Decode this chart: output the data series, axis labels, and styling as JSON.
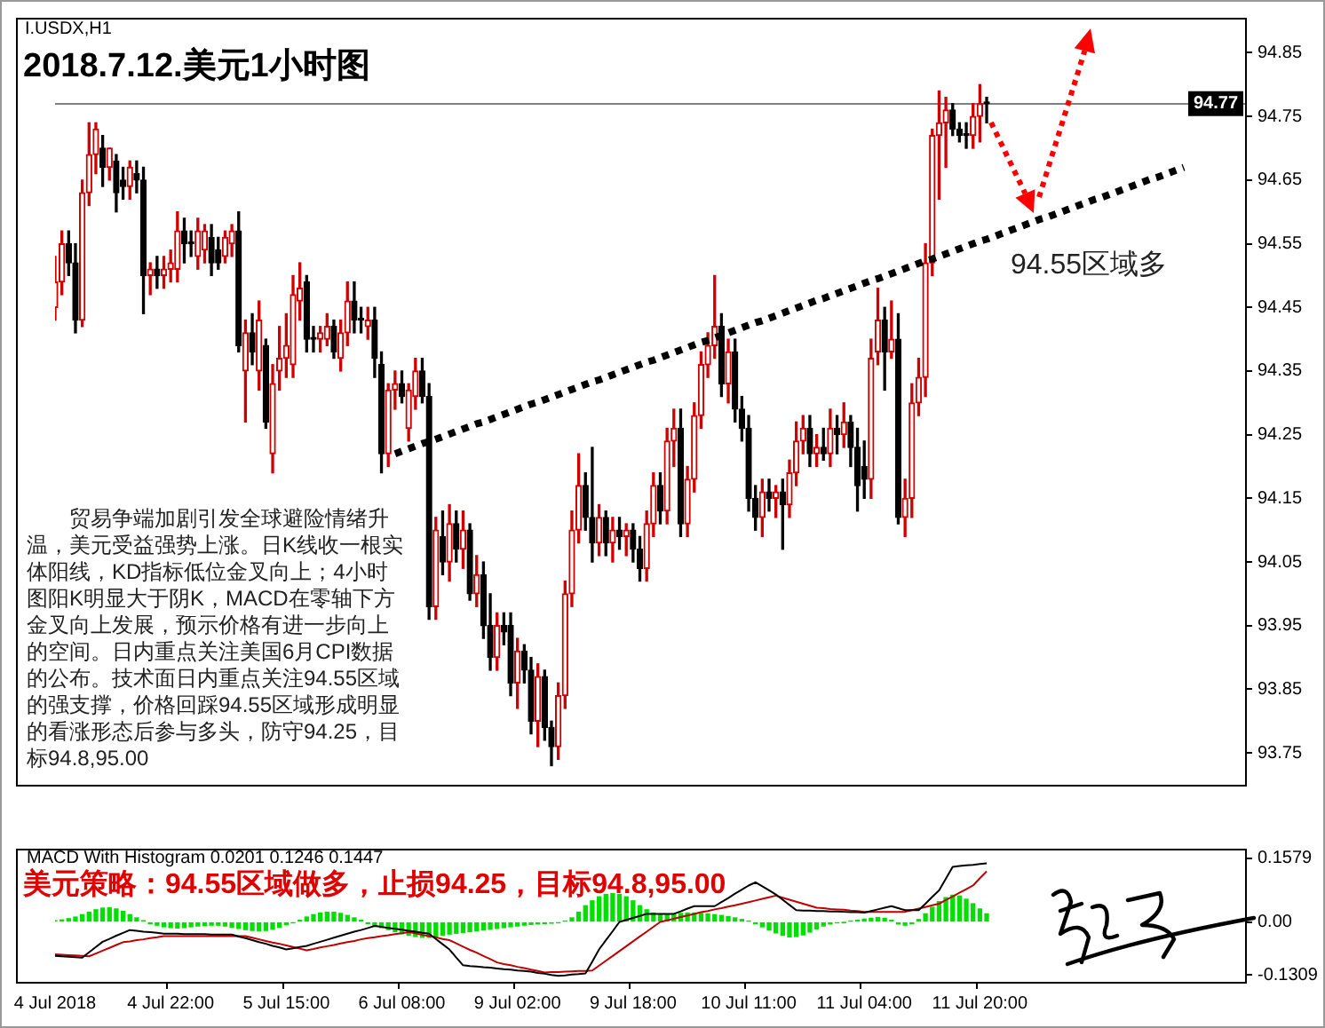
{
  "chart_data": [
    {
      "type": "candlestick",
      "subtitle": "I.USDX,H1",
      "title": "2018.7.12.美元1小时图",
      "ohlc": [
        [
          94.45,
          94.53,
          94.43,
          94.49
        ],
        [
          94.49,
          94.57,
          94.47,
          94.55
        ],
        [
          94.55,
          94.57,
          94.5,
          94.52
        ],
        [
          94.52,
          94.55,
          94.41,
          94.43
        ],
        [
          94.43,
          94.65,
          94.42,
          94.63
        ],
        [
          94.63,
          94.74,
          94.61,
          94.69
        ],
        [
          94.69,
          94.74,
          94.66,
          94.73
        ],
        [
          94.7,
          94.72,
          94.64,
          94.67
        ],
        [
          94.67,
          94.7,
          94.65,
          94.7
        ],
        [
          94.68,
          94.69,
          94.6,
          94.63
        ],
        [
          94.65,
          94.67,
          94.62,
          94.64
        ],
        [
          94.64,
          94.68,
          94.62,
          94.67
        ],
        [
          94.66,
          94.68,
          94.63,
          94.65
        ],
        [
          94.65,
          94.67,
          94.44,
          94.5
        ],
        [
          94.5,
          94.52,
          94.47,
          94.51
        ],
        [
          94.51,
          94.53,
          94.48,
          94.5
        ],
        [
          94.5,
          94.53,
          94.48,
          94.51
        ],
        [
          94.51,
          94.54,
          94.49,
          94.52
        ],
        [
          94.51,
          94.6,
          94.49,
          94.57
        ],
        [
          94.57,
          94.59,
          94.52,
          94.55
        ],
        [
          94.55,
          94.57,
          94.53,
          94.55
        ],
        [
          94.53,
          94.59,
          94.51,
          94.57
        ],
        [
          94.54,
          94.58,
          94.52,
          94.57
        ],
        [
          94.56,
          94.58,
          94.5,
          94.52
        ],
        [
          94.54,
          94.56,
          94.51,
          94.52
        ],
        [
          94.53,
          94.57,
          94.52,
          94.56
        ],
        [
          94.55,
          94.58,
          94.53,
          94.57
        ],
        [
          94.57,
          94.6,
          94.38,
          94.39
        ],
        [
          94.35,
          94.43,
          94.27,
          94.41
        ],
        [
          94.41,
          94.44,
          94.36,
          94.38
        ],
        [
          94.35,
          94.46,
          94.32,
          94.43
        ],
        [
          94.39,
          94.4,
          94.26,
          94.27
        ],
        [
          94.22,
          94.36,
          94.19,
          94.33
        ],
        [
          94.35,
          94.42,
          94.32,
          94.37
        ],
        [
          94.37,
          94.44,
          94.34,
          94.39
        ],
        [
          94.36,
          94.5,
          94.34,
          94.47
        ],
        [
          94.46,
          94.52,
          94.43,
          94.48
        ],
        [
          94.49,
          94.5,
          94.38,
          94.4
        ],
        [
          94.4,
          94.42,
          94.38,
          94.4
        ],
        [
          94.4,
          94.42,
          94.38,
          94.41
        ],
        [
          94.4,
          94.44,
          94.39,
          94.42
        ],
        [
          94.42,
          94.43,
          94.37,
          94.38
        ],
        [
          94.37,
          94.43,
          94.35,
          94.41
        ],
        [
          94.41,
          94.49,
          94.39,
          94.46
        ],
        [
          94.46,
          94.49,
          94.41,
          94.43
        ],
        [
          94.43,
          94.45,
          94.41,
          94.43
        ],
        [
          94.42,
          94.45,
          94.4,
          94.43
        ],
        [
          94.43,
          94.45,
          94.34,
          94.37
        ],
        [
          94.36,
          94.38,
          94.19,
          94.22
        ],
        [
          94.22,
          94.33,
          94.2,
          94.32
        ],
        [
          94.32,
          94.35,
          94.29,
          94.33
        ],
        [
          94.33,
          94.35,
          94.3,
          94.31
        ],
        [
          94.26,
          94.33,
          94.24,
          94.32
        ],
        [
          94.31,
          94.37,
          94.29,
          94.35
        ],
        [
          94.35,
          94.37,
          94.3,
          94.31
        ],
        [
          94.31,
          94.33,
          93.96,
          93.98
        ],
        [
          93.98,
          94.12,
          93.96,
          94.1
        ],
        [
          94.09,
          94.13,
          94.03,
          94.05
        ],
        [
          94.05,
          94.14,
          94.02,
          94.11
        ],
        [
          94.11,
          94.13,
          94.05,
          94.07
        ],
        [
          94.07,
          94.13,
          94.04,
          94.1
        ],
        [
          94.1,
          94.11,
          93.99,
          94.0
        ],
        [
          94.0,
          94.06,
          93.98,
          94.03
        ],
        [
          94.03,
          94.05,
          93.93,
          93.95
        ],
        [
          93.95,
          94.0,
          93.88,
          93.9
        ],
        [
          93.9,
          93.97,
          93.88,
          93.95
        ],
        [
          93.95,
          93.97,
          93.92,
          93.94
        ],
        [
          93.95,
          93.97,
          93.84,
          93.86
        ],
        [
          93.86,
          93.93,
          93.82,
          93.91
        ],
        [
          93.91,
          93.92,
          93.86,
          93.88
        ],
        [
          93.88,
          93.9,
          93.78,
          93.8
        ],
        [
          93.8,
          93.89,
          93.76,
          93.87
        ],
        [
          93.87,
          93.88,
          93.77,
          93.79
        ],
        [
          93.79,
          93.8,
          93.73,
          93.76
        ],
        [
          93.76,
          93.86,
          93.74,
          93.84
        ],
        [
          93.84,
          94.02,
          93.82,
          94.0
        ],
        [
          94.0,
          94.13,
          93.98,
          94.1
        ],
        [
          94.1,
          94.22,
          94.08,
          94.17
        ],
        [
          94.17,
          94.19,
          94.1,
          94.12
        ],
        [
          94.12,
          94.23,
          94.05,
          94.08
        ],
        [
          94.08,
          94.14,
          94.06,
          94.12
        ],
        [
          94.12,
          94.13,
          94.06,
          94.08
        ],
        [
          94.08,
          94.12,
          94.05,
          94.1
        ],
        [
          94.1,
          94.12,
          94.07,
          94.09
        ],
        [
          94.09,
          94.11,
          94.06,
          94.1
        ],
        [
          94.1,
          94.11,
          94.05,
          94.07
        ],
        [
          94.07,
          94.09,
          94.02,
          94.04
        ],
        [
          94.04,
          94.13,
          94.02,
          94.11
        ],
        [
          94.11,
          94.19,
          94.09,
          94.17
        ],
        [
          94.17,
          94.19,
          94.11,
          94.13
        ],
        [
          94.13,
          94.26,
          94.11,
          94.24
        ],
        [
          94.24,
          94.29,
          94.2,
          94.26
        ],
        [
          94.26,
          94.29,
          94.09,
          94.11
        ],
        [
          94.11,
          94.2,
          94.09,
          94.18
        ],
        [
          94.18,
          94.3,
          94.16,
          94.28
        ],
        [
          94.28,
          94.38,
          94.26,
          94.36
        ],
        [
          94.36,
          94.41,
          94.34,
          94.39
        ],
        [
          94.39,
          94.5,
          94.37,
          94.42
        ],
        [
          94.42,
          94.44,
          94.31,
          94.33
        ],
        [
          94.33,
          94.4,
          94.3,
          94.38
        ],
        [
          94.38,
          94.4,
          94.27,
          94.29
        ],
        [
          94.29,
          94.31,
          94.24,
          94.26
        ],
        [
          94.26,
          94.28,
          94.13,
          94.15
        ],
        [
          94.15,
          94.17,
          94.1,
          94.12
        ],
        [
          94.12,
          94.18,
          94.09,
          94.16
        ],
        [
          94.16,
          94.18,
          94.13,
          94.15
        ],
        [
          94.15,
          94.17,
          94.12,
          94.16
        ],
        [
          94.16,
          94.18,
          94.07,
          94.14
        ],
        [
          94.14,
          94.21,
          94.12,
          94.19
        ],
        [
          94.19,
          94.27,
          94.17,
          94.24
        ],
        [
          94.24,
          94.28,
          94.22,
          94.26
        ],
        [
          94.26,
          94.28,
          94.2,
          94.22
        ],
        [
          94.22,
          94.25,
          94.2,
          94.23
        ],
        [
          94.23,
          94.26,
          94.21,
          94.22
        ],
        [
          94.22,
          94.29,
          94.2,
          94.26
        ],
        [
          94.26,
          94.28,
          94.22,
          94.25
        ],
        [
          94.25,
          94.3,
          94.23,
          94.27
        ],
        [
          94.27,
          94.28,
          94.2,
          94.23
        ],
        [
          94.23,
          94.26,
          94.13,
          94.17
        ],
        [
          94.2,
          94.24,
          94.15,
          94.18
        ],
        [
          94.18,
          94.4,
          94.15,
          94.37
        ],
        [
          94.38,
          94.48,
          94.36,
          94.43
        ],
        [
          94.43,
          94.45,
          94.32,
          94.38
        ],
        [
          94.38,
          94.46,
          94.37,
          94.4
        ],
        [
          94.4,
          94.44,
          94.11,
          94.12
        ],
        [
          94.12,
          94.18,
          94.09,
          94.15
        ],
        [
          94.15,
          94.33,
          94.12,
          94.3
        ],
        [
          94.3,
          94.37,
          94.28,
          94.34
        ],
        [
          94.34,
          94.55,
          94.31,
          94.52
        ],
        [
          94.52,
          94.73,
          94.5,
          94.72
        ],
        [
          94.72,
          94.79,
          94.62,
          94.74
        ],
        [
          94.74,
          94.78,
          94.67,
          94.76
        ],
        [
          94.76,
          94.77,
          94.72,
          94.73
        ],
        [
          94.73,
          94.74,
          94.71,
          94.72
        ],
        [
          94.72,
          94.74,
          94.7,
          94.72
        ],
        [
          94.72,
          94.77,
          94.7,
          94.75
        ],
        [
          94.75,
          94.8,
          94.71,
          94.77
        ],
        [
          94.77,
          94.78,
          94.74,
          94.77
        ],
        null,
        null,
        null,
        null,
        null,
        null,
        null,
        null,
        null,
        null,
        null,
        null,
        null,
        null,
        null,
        null,
        null,
        null,
        null,
        null,
        null,
        null,
        null,
        null,
        null,
        null,
        null,
        null,
        null,
        null,
        null,
        null,
        null,
        null,
        null,
        null,
        null,
        null
      ],
      "ylim": [
        93.7,
        94.905
      ],
      "yticks": [
        94.85,
        94.75,
        94.65,
        94.55,
        94.45,
        94.35,
        94.25,
        94.15,
        94.05,
        93.95,
        93.85,
        93.75
      ],
      "tick_labels": "y",
      "ref_lines": [
        {
          "axis": "y",
          "value": 94.77,
          "label": "94.77",
          "color": "#808080"
        }
      ],
      "series": [
        {
          "type": "line",
          "color": "#000000",
          "line_style": "dotted",
          "values": [
            null,
            null,
            null,
            null,
            null,
            null,
            null,
            null,
            null,
            null,
            null,
            null,
            null,
            null,
            null,
            null,
            null,
            null,
            null,
            null,
            null,
            null,
            null,
            null,
            null,
            null,
            null,
            null,
            null,
            null,
            null,
            null,
            null,
            null,
            null,
            null,
            null,
            null,
            null,
            null,
            null,
            null,
            null,
            null,
            null,
            null,
            null,
            null,
            null,
            null,
            94.22,
            94.224,
            94.228,
            94.232,
            94.236,
            94.239,
            94.243,
            94.247,
            94.251,
            94.255,
            94.259,
            94.263,
            94.267,
            94.27,
            94.274,
            94.278,
            94.282,
            94.286,
            94.29,
            94.294,
            94.298,
            94.301,
            94.305,
            94.309,
            94.313,
            94.317,
            94.321,
            94.325,
            94.329,
            94.333,
            94.336,
            94.34,
            94.344,
            94.348,
            94.352,
            94.356,
            94.36,
            94.364,
            94.367,
            94.371,
            94.375,
            94.379,
            94.383,
            94.387,
            94.391,
            94.395,
            94.398,
            94.402,
            94.406,
            94.41,
            94.414,
            94.418,
            94.422,
            94.426,
            94.429,
            94.433,
            94.437,
            94.441,
            94.445,
            94.449,
            94.453,
            94.457,
            94.461,
            94.464,
            94.468,
            94.472,
            94.476,
            94.48,
            94.484,
            94.488,
            94.492,
            94.495,
            94.499,
            94.503,
            94.507,
            94.511,
            94.515,
            94.519,
            94.523,
            94.526,
            94.53,
            94.534,
            94.538,
            94.542,
            94.546,
            94.55,
            94.554,
            94.557,
            94.561,
            94.565,
            94.569,
            94.573,
            94.577,
            94.581,
            94.585,
            94.589,
            94.592,
            94.596,
            94.6,
            94.604,
            94.608,
            94.612,
            94.616,
            94.62,
            94.623,
            94.627,
            94.631,
            94.635,
            94.639,
            94.643,
            94.647,
            94.651,
            94.654,
            94.658,
            94.662,
            94.666,
            94.67,
            null,
            null,
            null,
            null,
            null,
            null,
            null,
            null,
            null
          ]
        }
      ],
      "annotations": [
        "94.55区域多",
        "贸易争端加剧引发全球避险情绪升温，美元受益强势上涨。日K线收一根实体阳线，KD指标低位金叉向上；4小时图阳K明显大于阴K，MACD在零轴下方金叉向上发展，预示价格有进一步向上的空间。日内重点关注美国6月CPI数据的公布。技术面日内重点关注94.55区域的强支撑，价格回踩94.55区域形成明显的看涨形态后参与多头，防守94.25，目标94.8,95.00"
      ]
    },
    {
      "type": "bar",
      "title": "MACD With Histogram 0.0201 0.1246 0.1447",
      "categories": [
        "4 Jul 2018",
        null,
        null,
        null,
        null,
        null,
        null,
        null,
        null,
        null,
        null,
        null,
        null,
        null,
        null,
        null,
        null,
        "4 Jul 22:00",
        null,
        null,
        null,
        null,
        null,
        null,
        null,
        null,
        null,
        null,
        null,
        null,
        null,
        null,
        null,
        null,
        "5 Jul 15:00",
        null,
        null,
        null,
        null,
        null,
        null,
        null,
        null,
        null,
        null,
        null,
        null,
        null,
        null,
        null,
        null,
        "6 Jul 08:00",
        null,
        null,
        null,
        null,
        null,
        null,
        null,
        null,
        null,
        null,
        null,
        null,
        null,
        null,
        null,
        null,
        "9 Jul 02:00",
        null,
        null,
        null,
        null,
        null,
        null,
        null,
        null,
        null,
        null,
        null,
        null,
        null,
        null,
        null,
        null,
        "9 Jul 18:00",
        null,
        null,
        null,
        null,
        null,
        null,
        null,
        null,
        null,
        null,
        null,
        null,
        null,
        null,
        null,
        null,
        "10 Jul 11:00",
        null,
        null,
        null,
        null,
        null,
        null,
        null,
        null,
        null,
        null,
        null,
        null,
        null,
        null,
        null,
        null,
        "11 Jul 04:00",
        null,
        null,
        null,
        null,
        null,
        null,
        null,
        null,
        null,
        null,
        null,
        null,
        null,
        null,
        null,
        null,
        "11 Jul 20:00",
        null,
        null,
        null,
        null,
        null,
        null,
        null,
        null,
        null,
        null,
        null,
        null,
        null,
        null,
        null,
        null,
        null,
        null,
        null,
        null,
        null,
        null,
        null,
        null,
        null,
        null,
        null,
        null,
        null,
        null,
        null,
        null,
        null,
        null,
        null,
        null,
        null,
        null,
        null
      ],
      "series": [
        {
          "type": "bar",
          "color": "#00e000",
          "values": [
            0.003,
            0.005,
            0.008,
            0.012,
            0.018,
            0.024,
            0.03,
            0.034,
            0.035,
            0.032,
            0.026,
            0.018,
            0.01,
            0.003,
            -0.004,
            -0.008,
            -0.012,
            -0.014,
            -0.015,
            -0.014,
            -0.012,
            -0.01,
            -0.009,
            -0.008,
            -0.008,
            -0.01,
            -0.013,
            -0.016,
            -0.019,
            -0.021,
            -0.022,
            -0.021,
            -0.018,
            -0.013,
            -0.007,
            -0.002,
            0.004,
            0.012,
            0.018,
            0.022,
            0.024,
            0.024,
            0.021,
            0.016,
            0.01,
            0.004,
            -0.004,
            -0.009,
            -0.014,
            -0.019,
            -0.024,
            -0.029,
            -0.033,
            -0.036,
            -0.038,
            -0.038,
            -0.036,
            -0.033,
            -0.03,
            -0.028,
            -0.026,
            -0.024,
            -0.022,
            -0.02,
            -0.018,
            -0.016,
            -0.014,
            -0.012,
            -0.01,
            -0.008,
            -0.006,
            -0.005,
            -0.004,
            -0.003,
            -0.002,
            0.002,
            0.01,
            0.024,
            0.04,
            0.052,
            0.062,
            0.068,
            0.07,
            0.068,
            0.062,
            0.052,
            0.04,
            0.03,
            0.022,
            0.018,
            0.019,
            0.02,
            0.021,
            0.022,
            0.022,
            0.021,
            0.02,
            0.018,
            0.016,
            0.013,
            0.01,
            0.006,
            0.002,
            -0.004,
            -0.012,
            -0.02,
            -0.027,
            -0.033,
            -0.037,
            -0.036,
            -0.032,
            -0.025,
            -0.017,
            -0.01,
            -0.005,
            -0.002,
            -0.001,
            0.002,
            0.004,
            0.007,
            0.009,
            0.011,
            0.009,
            0.004,
            -0.005,
            -0.008,
            -0.004,
            0.006,
            0.02,
            0.036,
            0.05,
            0.06,
            0.066,
            0.064,
            0.056,
            0.045,
            0.032,
            0.02,
            null,
            null,
            null,
            null,
            null,
            null,
            null,
            null,
            null,
            null,
            null,
            null,
            null,
            null,
            null,
            null,
            null,
            null,
            null,
            null,
            null,
            null,
            null,
            null,
            null,
            null,
            null,
            null,
            null,
            null,
            null,
            null,
            null,
            null,
            null,
            null,
            null,
            null
          ]
        },
        {
          "type": "line",
          "color": "#000000",
          "values": [
            -0.084,
            -0.085,
            -0.086,
            -0.087,
            -0.088,
            -0.075,
            -0.062,
            -0.049,
            -0.042,
            -0.034,
            -0.027,
            -0.02,
            -0.022,
            -0.024,
            -0.025,
            -0.027,
            -0.029,
            -0.029,
            -0.029,
            -0.03,
            -0.03,
            -0.03,
            -0.03,
            -0.031,
            -0.031,
            -0.031,
            -0.031,
            -0.036,
            -0.04,
            -0.045,
            -0.05,
            -0.054,
            -0.059,
            -0.063,
            -0.068,
            -0.065,
            -0.062,
            -0.059,
            -0.054,
            -0.049,
            -0.044,
            -0.039,
            -0.034,
            -0.029,
            -0.024,
            -0.02,
            -0.015,
            -0.01,
            -0.012,
            -0.015,
            -0.017,
            -0.019,
            -0.022,
            -0.024,
            -0.027,
            -0.029,
            -0.042,
            -0.055,
            -0.068,
            -0.088,
            -0.107,
            -0.109,
            -0.11,
            -0.112,
            -0.113,
            -0.115,
            -0.117,
            -0.118,
            -0.12,
            -0.121,
            -0.123,
            -0.126,
            -0.128,
            -0.131,
            -0.133,
            -0.132,
            -0.13,
            -0.129,
            -0.127,
            -0.098,
            -0.068,
            -0.045,
            -0.023,
            0,
            0.005,
            0.01,
            0.015,
            0.02,
            0.02,
            0.02,
            0.02,
            0.02,
            0.026,
            0.033,
            0.039,
            0.039,
            0.039,
            0.039,
            0.049,
            0.059,
            0.07,
            0.08,
            0.09,
            0.098,
            0.088,
            0.078,
            0.068,
            0.055,
            0.042,
            0.029,
            0.028,
            0.028,
            0.027,
            0.027,
            0.026,
            0.026,
            0.025,
            0.024,
            0.024,
            0.023,
            0.027,
            0.031,
            0.035,
            0.039,
            0.034,
            0.029,
            0.029,
            0.029,
            0.045,
            0.062,
            0.078,
            0.107,
            0.136,
            0.138,
            0.14,
            0.141,
            0.143,
            0.145,
            null,
            null,
            null,
            null,
            null,
            null,
            null,
            null,
            null,
            null,
            null,
            null,
            null,
            null,
            null,
            null,
            null,
            null,
            null,
            null,
            null,
            null,
            null,
            null,
            null,
            null,
            null,
            null,
            null,
            null,
            null,
            null,
            null,
            null,
            null,
            null,
            null,
            null
          ]
        },
        {
          "type": "line",
          "color": "#c00000",
          "values": [
            -0.08,
            -0.081,
            -0.082,
            -0.083,
            -0.084,
            -0.085,
            -0.078,
            -0.071,
            -0.064,
            -0.057,
            -0.05,
            -0.048,
            -0.045,
            -0.043,
            -0.04,
            -0.038,
            -0.035,
            -0.035,
            -0.035,
            -0.035,
            -0.035,
            -0.035,
            -0.035,
            -0.035,
            -0.035,
            -0.035,
            -0.035,
            -0.035,
            -0.035,
            -0.039,
            -0.043,
            -0.047,
            -0.051,
            -0.054,
            -0.058,
            -0.062,
            -0.066,
            -0.07,
            -0.067,
            -0.063,
            -0.06,
            -0.057,
            -0.053,
            -0.05,
            -0.047,
            -0.043,
            -0.04,
            -0.038,
            -0.035,
            -0.033,
            -0.03,
            -0.028,
            -0.025,
            -0.028,
            -0.032,
            -0.035,
            -0.038,
            -0.042,
            -0.045,
            -0.053,
            -0.061,
            -0.069,
            -0.076,
            -0.084,
            -0.092,
            -0.1,
            -0.104,
            -0.107,
            -0.111,
            -0.114,
            -0.118,
            -0.121,
            -0.125,
            -0.124,
            -0.124,
            -0.123,
            -0.122,
            -0.121,
            -0.121,
            -0.12,
            -0.108,
            -0.096,
            -0.084,
            -0.072,
            -0.06,
            -0.048,
            -0.036,
            -0.024,
            -0.012,
            0,
            0.004,
            0.008,
            0.012,
            0.016,
            0.02,
            0.024,
            0.027,
            0.031,
            0.034,
            0.038,
            0.041,
            0.045,
            0.049,
            0.053,
            0.057,
            0.061,
            0.065,
            0.06,
            0.055,
            0.05,
            0.045,
            0.04,
            0.035,
            0.034,
            0.032,
            0.031,
            0.03,
            0.028,
            0.027,
            0.025,
            0.025,
            0.025,
            0.025,
            0.025,
            0.025,
            0.025,
            0.029,
            0.033,
            0.037,
            0.041,
            0.045,
            0.054,
            0.063,
            0.072,
            0.081,
            0.09,
            0.108,
            0.125,
            null,
            null,
            null,
            null,
            null,
            null,
            null,
            null,
            null,
            null,
            null,
            null,
            null,
            null,
            null,
            null,
            null,
            null,
            null,
            null,
            null,
            null,
            null,
            null,
            null,
            null,
            null,
            null,
            null,
            null,
            null,
            null,
            null,
            null,
            null,
            null,
            null,
            null
          ]
        }
      ],
      "ylim": [
        -0.148,
        0.181
      ],
      "yticks": [
        0.1579,
        {
          "value": 0,
          "label": "0.00"
        },
        -0.1309
      ],
      "annotations": [
        "美元策略：94.55区域做多，止损94.25，目标94.8,95.00"
      ]
    }
  ]
}
